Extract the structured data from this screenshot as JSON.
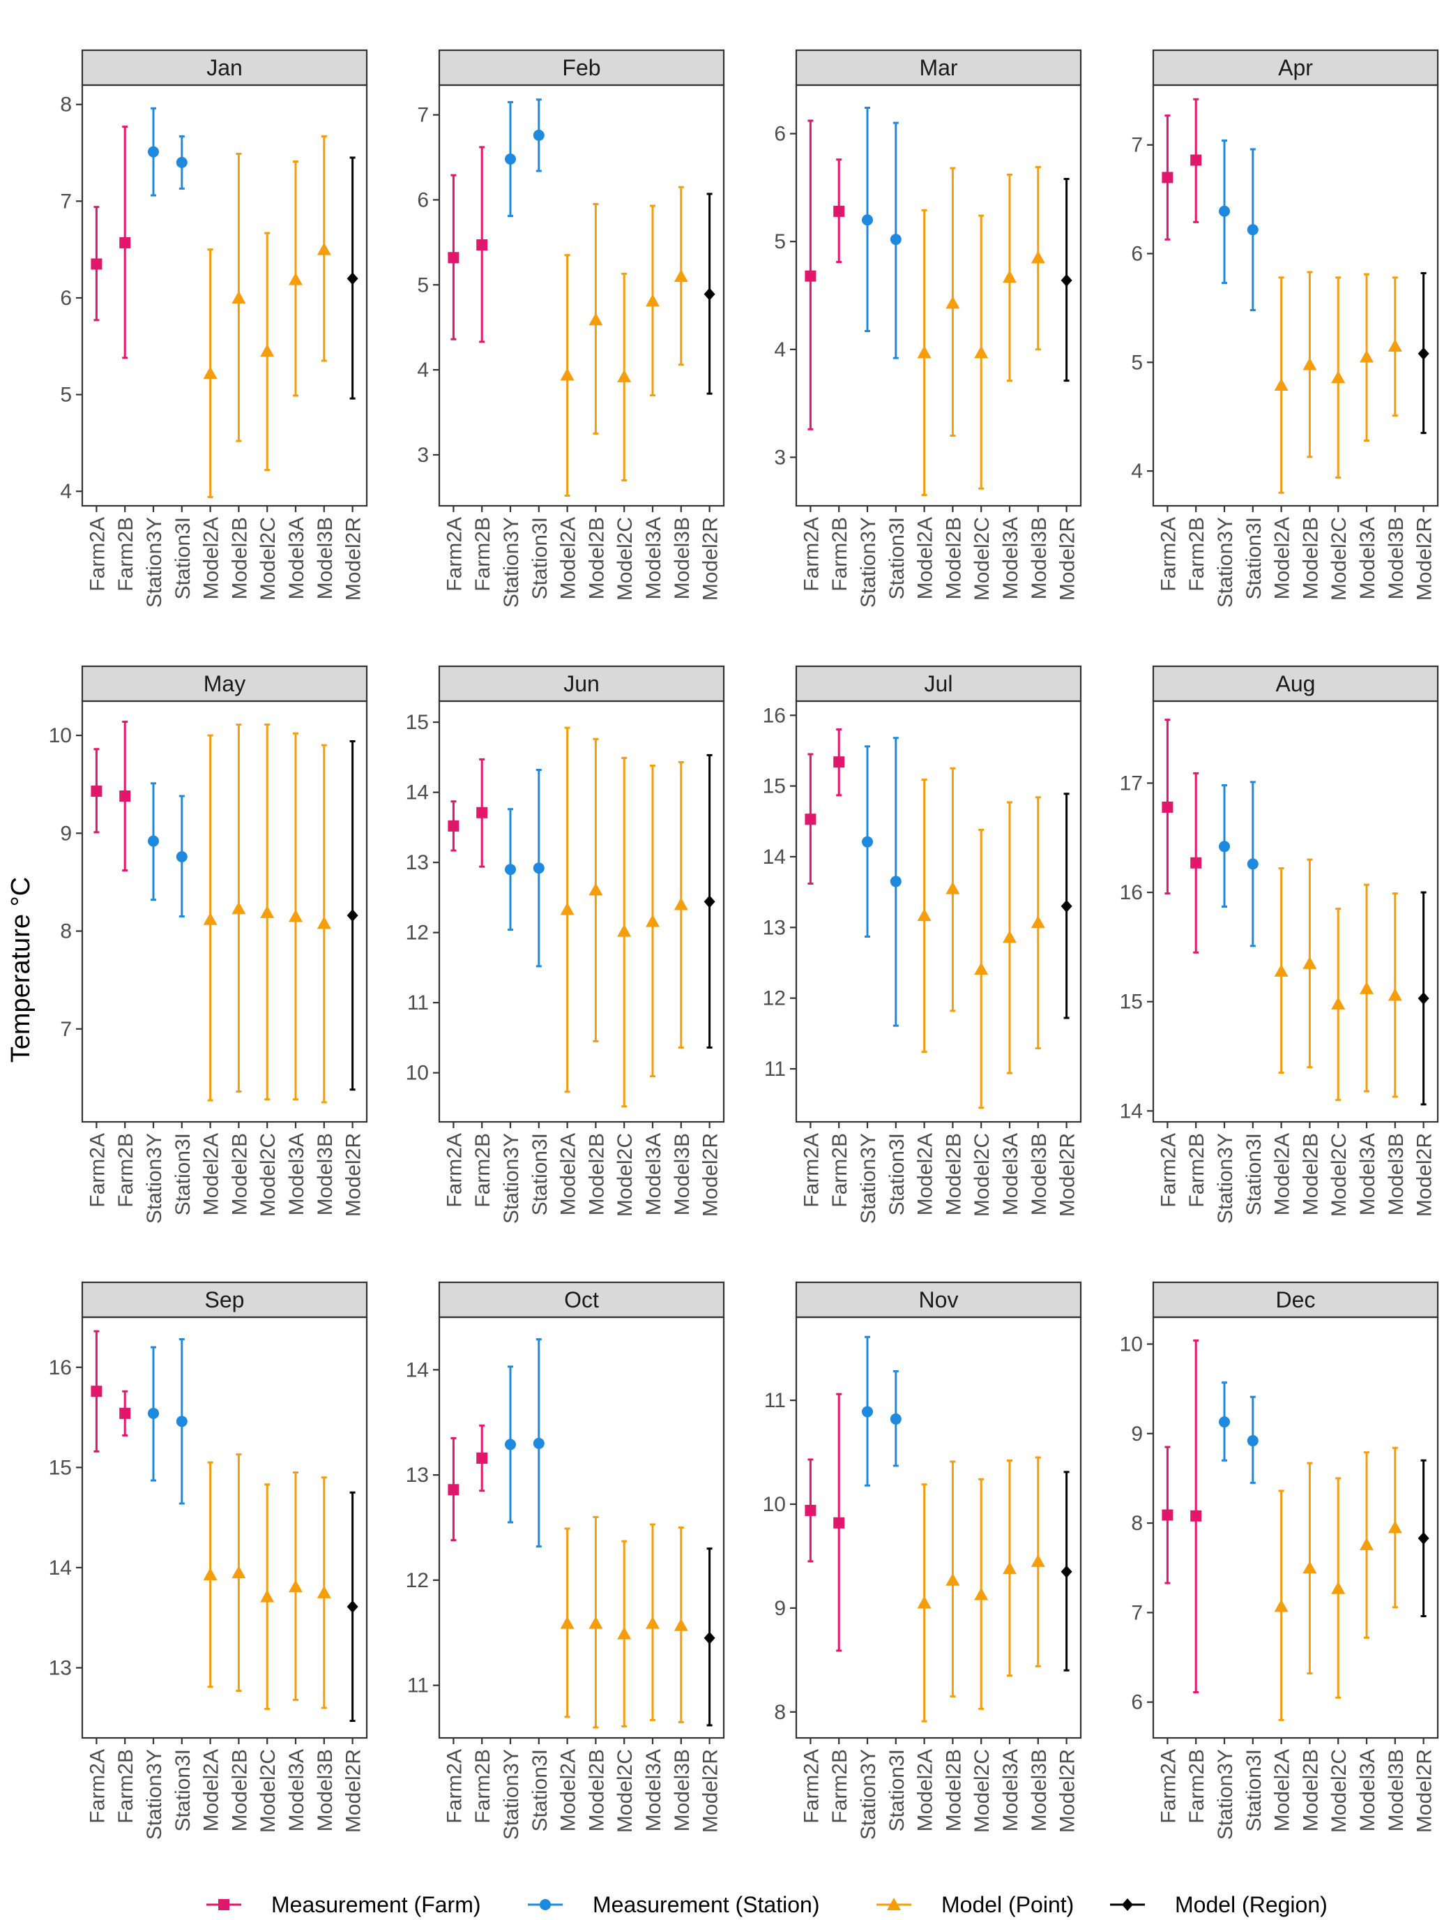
{
  "colors": {
    "farm": "#e0176a",
    "station": "#1d8ae0",
    "point": "#f59d0b",
    "region": "#000000"
  },
  "chart_data": {
    "type": "errorbar",
    "ylabel": "Temperature °C",
    "categories": [
      "Farm2A",
      "Farm2B",
      "Station3Y",
      "Station3I",
      "Model2A",
      "Model2B",
      "Model2C",
      "Model3A",
      "Model3B",
      "Model2R"
    ],
    "category_groups": [
      "farm",
      "farm",
      "station",
      "station",
      "point",
      "point",
      "point",
      "point",
      "point",
      "region"
    ],
    "legend": [
      {
        "key": "farm",
        "label": "Measurement (Farm)",
        "shape": "square"
      },
      {
        "key": "station",
        "label": "Measurement (Station)",
        "shape": "circle"
      },
      {
        "key": "point",
        "label": "Model (Point)",
        "shape": "triangle"
      },
      {
        "key": "region",
        "label": "Model (Region)",
        "shape": "diamond"
      }
    ],
    "legend_position": "bottom",
    "panels": [
      {
        "month": "Jan",
        "ylim": [
          3.85,
          8.2
        ],
        "yticks": [
          4,
          5,
          6,
          7,
          8
        ],
        "mean": [
          6.35,
          6.57,
          7.51,
          7.4,
          5.22,
          6.0,
          5.45,
          6.19,
          6.5,
          6.2
        ],
        "low": [
          5.77,
          5.38,
          7.06,
          7.13,
          3.94,
          4.52,
          4.22,
          4.99,
          5.35,
          4.96
        ],
        "high": [
          6.94,
          7.77,
          7.96,
          7.67,
          6.5,
          7.49,
          6.67,
          7.41,
          7.67,
          7.45
        ]
      },
      {
        "month": "Feb",
        "ylim": [
          2.4,
          7.35
        ],
        "yticks": [
          3,
          4,
          5,
          6,
          7
        ],
        "mean": [
          5.32,
          5.47,
          6.48,
          6.76,
          3.94,
          4.59,
          3.92,
          4.81,
          5.1,
          4.89
        ],
        "low": [
          4.36,
          4.33,
          5.81,
          6.34,
          2.52,
          3.25,
          2.7,
          3.7,
          4.06,
          3.72
        ],
        "high": [
          6.29,
          6.62,
          7.15,
          7.18,
          5.35,
          5.95,
          5.13,
          5.93,
          6.15,
          6.07
        ]
      },
      {
        "month": "Mar",
        "ylim": [
          2.55,
          6.45
        ],
        "yticks": [
          3,
          4,
          5,
          6
        ],
        "mean": [
          4.68,
          5.28,
          5.2,
          5.02,
          3.97,
          4.43,
          3.97,
          4.67,
          4.85,
          4.64
        ],
        "low": [
          3.26,
          4.81,
          4.17,
          3.92,
          2.65,
          3.2,
          2.71,
          3.71,
          4.0,
          3.71
        ],
        "high": [
          6.12,
          5.76,
          6.24,
          6.1,
          5.29,
          5.68,
          5.24,
          5.62,
          5.69,
          5.58
        ]
      },
      {
        "month": "Apr",
        "ylim": [
          3.68,
          7.55
        ],
        "yticks": [
          4,
          5,
          6,
          7
        ],
        "mean": [
          6.7,
          6.86,
          6.39,
          6.22,
          4.79,
          4.98,
          4.86,
          5.05,
          5.15,
          5.08
        ],
        "low": [
          6.13,
          6.29,
          5.73,
          5.48,
          3.8,
          4.13,
          3.94,
          4.28,
          4.51,
          4.35
        ],
        "high": [
          7.27,
          7.42,
          7.04,
          6.96,
          5.78,
          5.83,
          5.78,
          5.81,
          5.78,
          5.82
        ]
      },
      {
        "month": "May",
        "ylim": [
          6.05,
          10.35
        ],
        "yticks": [
          7,
          8,
          9,
          10
        ],
        "mean": [
          9.43,
          9.38,
          8.92,
          8.76,
          8.12,
          8.23,
          8.19,
          8.15,
          8.08,
          8.16
        ],
        "low": [
          9.01,
          8.62,
          8.32,
          8.15,
          6.27,
          6.36,
          6.28,
          6.28,
          6.25,
          6.38
        ],
        "high": [
          9.86,
          10.14,
          9.51,
          9.38,
          10.0,
          10.11,
          10.11,
          10.02,
          9.9,
          9.94
        ]
      },
      {
        "month": "Jun",
        "ylim": [
          9.3,
          15.3
        ],
        "yticks": [
          10,
          11,
          12,
          13,
          14,
          15
        ],
        "mean": [
          13.52,
          13.71,
          12.9,
          12.92,
          12.33,
          12.61,
          12.02,
          12.16,
          12.4,
          12.44
        ],
        "low": [
          13.17,
          12.94,
          12.04,
          11.52,
          9.73,
          10.45,
          9.52,
          9.95,
          10.36,
          10.36
        ],
        "high": [
          13.87,
          14.47,
          13.76,
          14.32,
          14.92,
          14.76,
          14.49,
          14.38,
          14.43,
          14.53
        ]
      },
      {
        "month": "Jul",
        "ylim": [
          10.25,
          16.2
        ],
        "yticks": [
          11,
          12,
          13,
          14,
          15,
          16
        ],
        "mean": [
          14.53,
          15.34,
          14.21,
          13.65,
          13.17,
          13.55,
          12.41,
          12.86,
          13.07,
          13.3
        ],
        "low": [
          13.62,
          14.87,
          12.87,
          11.61,
          11.24,
          11.82,
          10.45,
          10.94,
          11.29,
          11.72
        ],
        "high": [
          15.45,
          15.8,
          15.56,
          15.68,
          15.09,
          15.25,
          14.38,
          14.77,
          14.84,
          14.89
        ]
      },
      {
        "month": "Aug",
        "ylim": [
          13.9,
          17.75
        ],
        "yticks": [
          14,
          15,
          16,
          17
        ],
        "mean": [
          16.78,
          16.27,
          16.42,
          16.26,
          15.28,
          15.35,
          14.98,
          15.12,
          15.06,
          15.03
        ],
        "low": [
          15.99,
          15.45,
          15.87,
          15.51,
          14.35,
          14.4,
          14.1,
          14.18,
          14.13,
          14.06
        ],
        "high": [
          17.58,
          17.09,
          16.98,
          17.01,
          16.22,
          16.3,
          15.85,
          16.07,
          15.99,
          16.0
        ]
      },
      {
        "month": "Sep",
        "ylim": [
          12.3,
          16.5
        ],
        "yticks": [
          13,
          14,
          15,
          16
        ],
        "mean": [
          15.76,
          15.54,
          15.54,
          15.46,
          13.93,
          13.95,
          13.71,
          13.81,
          13.75,
          13.61
        ],
        "low": [
          15.16,
          15.32,
          14.87,
          14.64,
          12.81,
          12.77,
          12.59,
          12.68,
          12.6,
          12.47
        ],
        "high": [
          16.36,
          15.76,
          16.2,
          16.28,
          15.05,
          15.13,
          14.83,
          14.95,
          14.9,
          14.75
        ]
      },
      {
        "month": "Oct",
        "ylim": [
          10.5,
          14.5
        ],
        "yticks": [
          11,
          12,
          13,
          14
        ],
        "mean": [
          12.86,
          13.16,
          13.29,
          13.3,
          11.59,
          11.59,
          11.49,
          11.59,
          11.57,
          11.45
        ],
        "low": [
          12.38,
          12.85,
          12.55,
          12.32,
          10.7,
          10.6,
          10.61,
          10.67,
          10.65,
          10.62
        ],
        "high": [
          13.35,
          13.47,
          14.03,
          14.29,
          12.49,
          12.6,
          12.37,
          12.53,
          12.5,
          12.3
        ]
      },
      {
        "month": "Nov",
        "ylim": [
          7.75,
          11.8
        ],
        "yticks": [
          8,
          9,
          10,
          11
        ],
        "mean": [
          9.94,
          9.82,
          10.89,
          10.82,
          9.05,
          9.27,
          9.13,
          9.38,
          9.45,
          9.35
        ],
        "low": [
          9.45,
          8.59,
          10.18,
          10.37,
          7.91,
          8.15,
          8.03,
          8.35,
          8.44,
          8.4
        ],
        "high": [
          10.43,
          11.06,
          11.61,
          11.28,
          10.19,
          10.41,
          10.24,
          10.42,
          10.45,
          10.31
        ]
      },
      {
        "month": "Dec",
        "ylim": [
          5.6,
          10.3
        ],
        "yticks": [
          6,
          7,
          8,
          9,
          10
        ],
        "mean": [
          8.09,
          8.08,
          9.13,
          8.92,
          7.07,
          7.5,
          7.27,
          7.76,
          7.95,
          7.83
        ],
        "low": [
          7.33,
          6.11,
          8.7,
          8.45,
          5.8,
          6.32,
          6.05,
          6.72,
          7.06,
          6.96
        ],
        "high": [
          8.85,
          10.04,
          9.57,
          9.41,
          8.36,
          8.67,
          8.5,
          8.79,
          8.84,
          8.7
        ]
      }
    ]
  }
}
